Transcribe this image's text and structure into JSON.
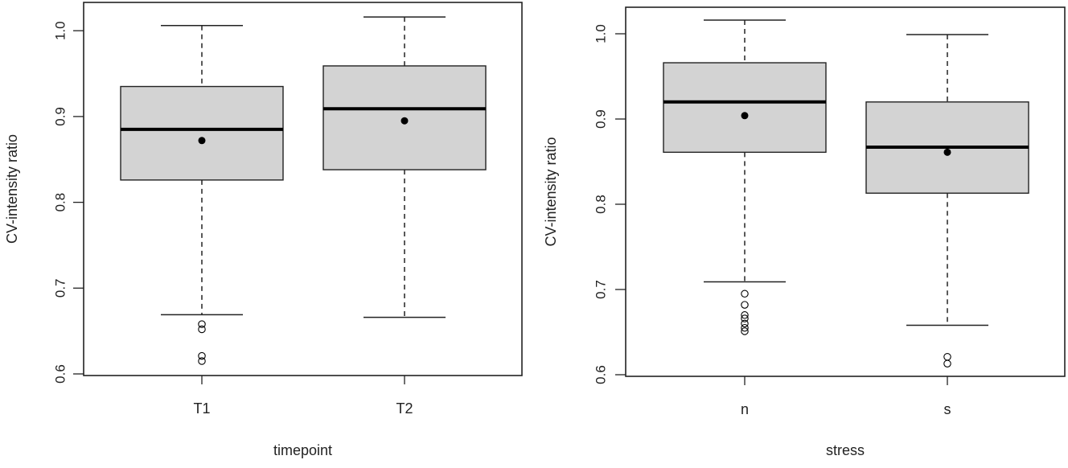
{
  "chart_data": [
    {
      "type": "boxplot",
      "title": "",
      "xlabel": "timepoint",
      "ylabel": "CV-intensity ratio",
      "ylim": [
        0.6,
        1.02
      ],
      "yticks": [
        0.6,
        0.7,
        0.8,
        0.9,
        1.0
      ],
      "ytick_labels": [
        "0.6",
        "0.7",
        "0.8",
        "0.9",
        "1.0"
      ],
      "grid": false,
      "categories": [
        "T1",
        "T2"
      ],
      "boxes": [
        {
          "label": "T1",
          "lower_whisker": 0.669,
          "q1": 0.826,
          "median": 0.885,
          "q3": 0.935,
          "upper_whisker": 1.006,
          "mean": 0.872,
          "outliers": [
            0.658,
            0.652,
            0.621,
            0.615
          ]
        },
        {
          "label": "T2",
          "lower_whisker": 0.666,
          "q1": 0.838,
          "median": 0.909,
          "q3": 0.959,
          "upper_whisker": 1.016,
          "mean": 0.895,
          "outliers": []
        }
      ]
    },
    {
      "type": "boxplot",
      "title": "",
      "xlabel": "stress",
      "ylabel": "CV-intensity ratio",
      "ylim": [
        0.6,
        1.02
      ],
      "yticks": [
        0.6,
        0.7,
        0.8,
        0.9,
        1.0
      ],
      "ytick_labels": [
        "0.6",
        "0.7",
        "0.8",
        "0.9",
        "1.0"
      ],
      "grid": false,
      "categories": [
        "n",
        "s"
      ],
      "boxes": [
        {
          "label": "n",
          "lower_whisker": 0.709,
          "q1": 0.861,
          "median": 0.92,
          "q3": 0.966,
          "upper_whisker": 1.016,
          "mean": 0.904,
          "outliers": [
            0.695,
            0.682,
            0.67,
            0.666,
            0.66,
            0.655,
            0.651
          ]
        },
        {
          "label": "s",
          "lower_whisker": 0.658,
          "q1": 0.813,
          "median": 0.867,
          "q3": 0.92,
          "upper_whisker": 0.999,
          "mean": 0.861,
          "outliers": [
            0.621,
            0.613
          ]
        }
      ]
    }
  ],
  "style": {
    "box_fill": "#d3d3d3",
    "line_color": "#000000",
    "axis_color": "#222222"
  }
}
